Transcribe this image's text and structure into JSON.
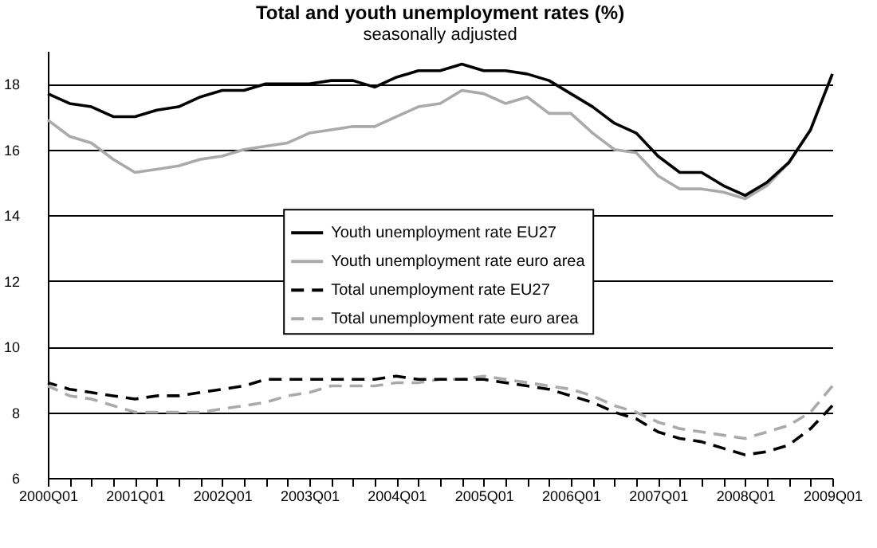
{
  "chart_data": {
    "type": "line",
    "title": "Total and youth unemployment rates (%)",
    "subtitle": "seasonally adjusted",
    "categories": [
      "2000Q01",
      null,
      null,
      null,
      "2001Q01",
      null,
      null,
      null,
      "2002Q01",
      null,
      null,
      null,
      "2003Q01",
      null,
      null,
      null,
      "2004Q01",
      null,
      null,
      null,
      "2005Q01",
      null,
      null,
      null,
      "2006Q01",
      null,
      null,
      null,
      "2007Q01",
      null,
      null,
      null,
      "2008Q01",
      null,
      null,
      null,
      "2009Q01"
    ],
    "series": [
      {
        "name": "Youth unemployment rate EU27",
        "color": "#000000",
        "line_style": "solid",
        "values": [
          17.7,
          17.4,
          17.3,
          17.0,
          17.0,
          17.2,
          17.3,
          17.6,
          17.8,
          17.8,
          18.0,
          18.0,
          18.0,
          18.1,
          18.1,
          17.9,
          18.2,
          18.4,
          18.4,
          18.6,
          18.4,
          18.4,
          18.3,
          18.1,
          17.7,
          17.3,
          16.8,
          16.5,
          15.8,
          15.3,
          15.3,
          14.9,
          14.6,
          15.0,
          15.6,
          16.6,
          18.3
        ]
      },
      {
        "name": "Youth unemployment rate euro area",
        "color": "#aaaaaa",
        "line_style": "solid",
        "values": [
          16.9,
          16.4,
          16.2,
          15.7,
          15.3,
          15.4,
          15.5,
          15.7,
          15.8,
          16.0,
          16.1,
          16.2,
          16.5,
          16.6,
          16.7,
          16.7,
          17.0,
          17.3,
          17.4,
          17.8,
          17.7,
          17.4,
          17.6,
          17.1,
          17.1,
          16.5,
          16.0,
          15.9,
          15.2,
          14.8,
          14.8,
          14.7,
          14.5,
          14.9,
          15.6,
          16.6,
          18.3
        ]
      },
      {
        "name": "Total unemployment rate EU27",
        "color": "#000000",
        "line_style": "dashed",
        "values": [
          8.9,
          8.7,
          8.6,
          8.5,
          8.4,
          8.5,
          8.5,
          8.6,
          8.7,
          8.8,
          9.0,
          9.0,
          9.0,
          9.0,
          9.0,
          9.0,
          9.1,
          9.0,
          9.0,
          9.0,
          9.0,
          8.9,
          8.8,
          8.7,
          8.5,
          8.3,
          8.0,
          7.8,
          7.4,
          7.2,
          7.1,
          6.9,
          6.7,
          6.8,
          7.0,
          7.5,
          8.2
        ]
      },
      {
        "name": "Total unemployment rate euro area",
        "color": "#aaaaaa",
        "line_style": "dashed",
        "values": [
          8.8,
          8.5,
          8.4,
          8.2,
          8.0,
          8.0,
          8.0,
          8.0,
          8.1,
          8.2,
          8.3,
          8.5,
          8.6,
          8.8,
          8.8,
          8.8,
          8.9,
          8.9,
          9.0,
          9.0,
          9.1,
          9.0,
          8.9,
          8.8,
          8.7,
          8.5,
          8.2,
          8.0,
          7.7,
          7.5,
          7.4,
          7.3,
          7.2,
          7.4,
          7.6,
          8.0,
          8.8
        ]
      }
    ],
    "ylim": [
      6,
      19
    ],
    "yticks": [
      6,
      8,
      10,
      12,
      14,
      16,
      18
    ],
    "grid": "y",
    "legend": "center",
    "marker": "none"
  }
}
